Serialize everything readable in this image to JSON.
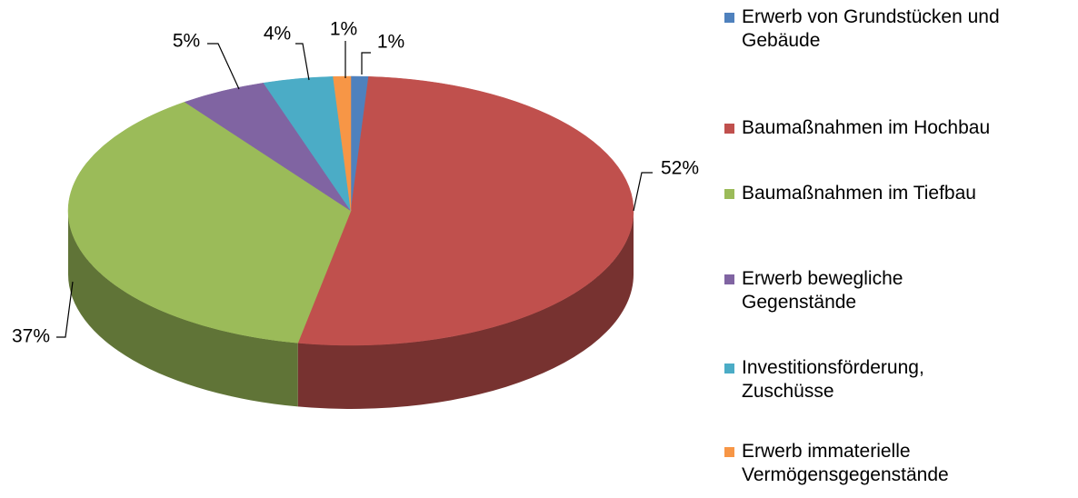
{
  "chart_data": {
    "type": "pie",
    "categories": [
      "Erwerb von Grundstücken und\nGebäude",
      "Baumaßnahmen im Hochbau",
      "Baumaßnahmen im Tiefbau",
      "Erwerb bewegliche\nGegenstände",
      "Investitionsförderung,\nZuschüsse",
      "Erwerb immaterielle\nVermögensgegenstände"
    ],
    "values": [
      1,
      52,
      37,
      5,
      4,
      1
    ],
    "value_labels": [
      "1%",
      "52%",
      "37%",
      "5%",
      "4%",
      "1%"
    ],
    "colors": [
      "#4f81bd",
      "#c0504d",
      "#9bbb59",
      "#8064a2",
      "#4bacc6",
      "#f79646"
    ],
    "legend": "right"
  }
}
